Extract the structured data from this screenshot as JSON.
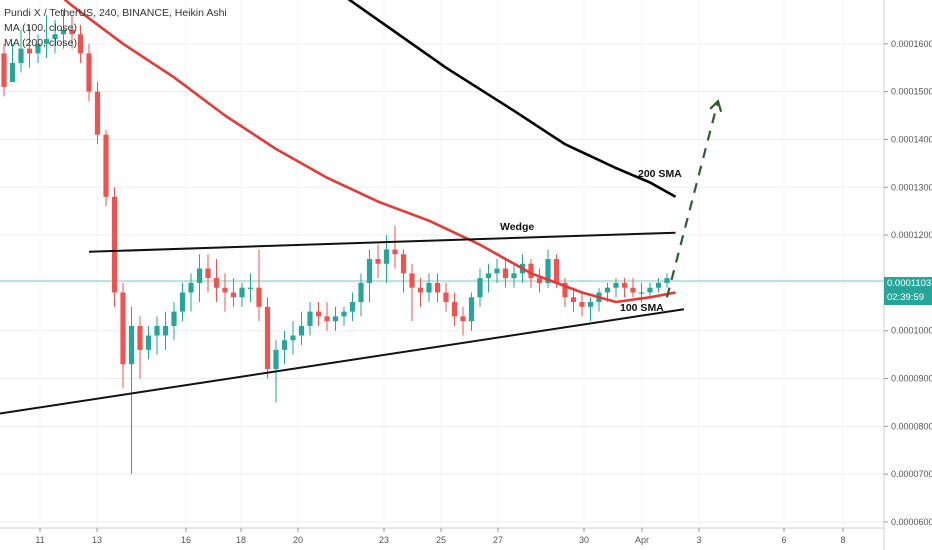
{
  "legend": {
    "title": "Pundi X / TetherUS, 240, BINANCE, Heikin Ashi",
    "ma1": "MA (100, close)",
    "ma2": "MA (200, close)"
  },
  "price_badge": {
    "price": "0.0001103",
    "countdown": "02:39:59"
  },
  "colors": {
    "up": "#26a69a",
    "down": "#ef5350",
    "ma100": "#e53935",
    "ma200": "#000000",
    "price_line": "#26a69a",
    "projection": "#2e5e2e"
  },
  "chart_data": {
    "type": "candlestick",
    "y_axis": {
      "ticks": [
        "0.0001600",
        "0.0001500",
        "0.0001400",
        "0.0001300",
        "0.0001200",
        "0.0001100",
        "0.0001000",
        "0.0000900",
        "0.0000800",
        "0.0000700",
        "0.0000600"
      ],
      "range": [
        6e-05,
        0.00017
      ]
    },
    "x_axis": {
      "ticks": [
        "11",
        "13",
        "16",
        "18",
        "20",
        "23",
        "25",
        "27",
        "30",
        "Apr",
        "3",
        "6",
        "8"
      ]
    },
    "annotations": {
      "wedge": "Wedge",
      "sma200": "200 SMA",
      "sma100": "100 SMA"
    },
    "candles": [
      [
        0.000158,
        0.00016,
        0.000149,
        0.000151
      ],
      [
        0.000152,
        0.00016,
        0.000152,
        0.000156
      ],
      [
        0.000156,
        0.000163,
        0.000154,
        0.000159
      ],
      [
        0.000159,
        0.000164,
        0.000155,
        0.000158
      ],
      [
        0.000158,
        0.000162,
        0.000156,
        0.00016
      ],
      [
        0.00016,
        0.000166,
        0.000157,
        0.000161
      ],
      [
        0.000161,
        0.000165,
        0.000158,
        0.000162
      ],
      [
        0.000162,
        0.000167,
        0.000159,
        0.000163
      ],
      [
        0.000163,
        0.000166,
        0.000159,
        0.000162
      ],
      [
        0.000162,
        0.000164,
        0.000156,
        0.000158
      ],
      [
        0.000158,
        0.00016,
        0.000148,
        0.00015
      ],
      [
        0.00015,
        0.000152,
        0.000139,
        0.000141
      ],
      [
        0.000141,
        0.000142,
        0.000126,
        0.000128
      ],
      [
        0.000128,
        0.00013,
        0.000105,
        0.000108
      ],
      [
        0.000108,
        0.00011,
        8.8e-05,
        9.3e-05
      ],
      [
        9.3e-05,
        0.000105,
        7e-05,
        0.000101
      ],
      [
        0.000101,
        0.000103,
        9e-05,
        9.6e-05
      ],
      [
        9.6e-05,
        0.000101,
        9.4e-05,
        9.9e-05
      ],
      [
        9.9e-05,
        0.000103,
        9.5e-05,
        0.000101
      ],
      [
        9.9e-05,
        0.000104,
        9.6e-05,
        0.000101
      ],
      [
        0.000101,
        0.000106,
        9.8e-05,
        0.000104
      ],
      [
        0.000104,
        0.00011,
        0.000102,
        0.000108
      ],
      [
        0.000108,
        0.000112,
        0.000104,
        0.00011
      ],
      [
        0.00011,
        0.000116,
        0.000106,
        0.000113
      ],
      [
        0.000113,
        0.000116,
        0.000108,
        0.000111
      ],
      [
        0.000111,
        0.000115,
        0.000106,
        0.000109
      ],
      [
        0.000109,
        0.000112,
        0.000104,
        0.000108
      ],
      [
        0.000108,
        0.000111,
        0.000105,
        0.000107
      ],
      [
        0.000107,
        0.00011,
        0.000105,
        0.000109
      ],
      [
        0.000109,
        0.000112,
        0.000106,
        0.000109
      ],
      [
        0.000109,
        0.000117,
        0.000102,
        0.000105
      ],
      [
        0.000105,
        0.000107,
        9e-05,
        9.2e-05
      ],
      [
        9.2e-05,
        9.8e-05,
        8.5e-05,
        9.6e-05
      ],
      [
        9.6e-05,
        0.0001,
        9.3e-05,
        9.8e-05
      ],
      [
        9.8e-05,
        0.000102,
        9.5e-05,
        9.9e-05
      ],
      [
        9.9e-05,
        0.000104,
        9.7e-05,
        0.000101
      ],
      [
        0.000101,
        0.000106,
        9.9e-05,
        0.000104
      ],
      [
        0.000104,
        0.000106,
        0.000101,
        0.000103
      ],
      [
        0.000103,
        0.000106,
        0.0001,
        0.000102
      ],
      [
        0.000102,
        0.000105,
        0.0001,
        0.000103
      ],
      [
        0.000103,
        0.000105,
        0.000101,
        0.000104
      ],
      [
        0.000104,
        0.000108,
        0.000102,
        0.000106
      ],
      [
        0.000106,
        0.000112,
        0.000103,
        0.00011
      ],
      [
        0.00011,
        0.000117,
        0.000106,
        0.000115
      ],
      [
        0.000115,
        0.000118,
        0.000111,
        0.000114
      ],
      [
        0.000114,
        0.00012,
        0.00011,
        0.000117
      ],
      [
        0.000117,
        0.000122,
        0.000113,
        0.000116
      ],
      [
        0.000116,
        0.000117,
        0.000108,
        0.000112
      ],
      [
        0.000112,
        0.000114,
        0.000102,
        0.000109
      ],
      [
        0.000109,
        0.000111,
        0.000105,
        0.000108
      ],
      [
        0.000108,
        0.000112,
        0.000106,
        0.00011
      ],
      [
        0.00011,
        0.000112,
        0.000106,
        0.000108
      ],
      [
        0.000108,
        0.00011,
        0.000104,
        0.000106
      ],
      [
        0.000106,
        0.000108,
        0.000101,
        0.000103
      ],
      [
        0.000103,
        0.000105,
        9.9e-05,
        0.000102
      ],
      [
        0.000102,
        0.000108,
        0.0001,
        0.000107
      ],
      [
        0.000107,
        0.000113,
        0.000105,
        0.000111
      ],
      [
        0.000111,
        0.000114,
        0.000108,
        0.000112
      ],
      [
        0.000112,
        0.000115,
        0.00011,
        0.000113
      ],
      [
        0.000113,
        0.000115,
        0.000109,
        0.000111
      ],
      [
        0.000111,
        0.000114,
        0.000109,
        0.000112
      ],
      [
        0.000112,
        0.000116,
        0.00011,
        0.000114
      ],
      [
        0.000114,
        0.000115,
        0.000109,
        0.000111
      ],
      [
        0.000111,
        0.000113,
        0.000108,
        0.00011
      ],
      [
        0.00011,
        0.000117,
        0.000109,
        0.000115
      ],
      [
        0.000115,
        0.000116,
        0.000109,
        0.00011
      ],
      [
        0.00011,
        0.000111,
        0.000105,
        0.000107
      ],
      [
        0.000107,
        0.000109,
        0.000104,
        0.000106
      ],
      [
        0.000106,
        0.000108,
        0.000103,
        0.000105
      ],
      [
        0.000105,
        0.000107,
        0.000102,
        0.000106
      ],
      [
        0.000106,
        0.000109,
        0.000104,
        0.000108
      ],
      [
        0.000108,
        0.00011,
        0.000106,
        0.000109
      ],
      [
        0.000109,
        0.000111,
        0.000107,
        0.00011
      ],
      [
        0.00011,
        0.000111,
        0.000107,
        0.000109
      ],
      [
        0.000109,
        0.000111,
        0.000107,
        0.000108
      ],
      [
        0.000108,
        0.00011,
        0.000106,
        0.000108
      ],
      [
        0.000108,
        0.00011,
        0.000107,
        0.000109
      ],
      [
        0.000109,
        0.000111,
        0.000108,
        0.00011
      ],
      [
        0.00011,
        0.000112,
        0.000109,
        0.000111
      ]
    ],
    "ma100": [
      [
        0.000178,
        0
      ],
      [
        0.000174,
        4
      ],
      [
        0.000168,
        8
      ],
      [
        0.00016,
        14
      ],
      [
        0.000153,
        20
      ],
      [
        0.000145,
        26
      ],
      [
        0.000138,
        32
      ],
      [
        0.000132,
        38
      ],
      [
        0.000127,
        44
      ],
      [
        0.000123,
        50
      ],
      [
        0.000118,
        56
      ],
      [
        0.000112,
        62
      ],
      [
        0.000108,
        68
      ],
      [
        0.000106,
        72
      ],
      [
        0.000107,
        76
      ],
      [
        0.000108,
        79
      ]
    ],
    "ma200": [
      [
        0.00019,
        20
      ],
      [
        0.000183,
        28
      ],
      [
        0.000175,
        36
      ],
      [
        0.000165,
        44
      ],
      [
        0.000155,
        52
      ],
      [
        0.000146,
        60
      ],
      [
        0.000139,
        66
      ],
      [
        0.000134,
        72
      ],
      [
        0.000131,
        76
      ],
      [
        0.000128,
        79
      ]
    ],
    "wedge_upper": [
      [
        0.0001165,
        10
      ],
      [
        0.0001205,
        79
      ]
    ],
    "wedge_lower": [
      [
        8.2e-05,
        -3
      ],
      [
        0.0001045,
        80
      ]
    ],
    "projection": [
      [
        0.000107,
        78
      ],
      [
        0.000148,
        84
      ]
    ]
  }
}
